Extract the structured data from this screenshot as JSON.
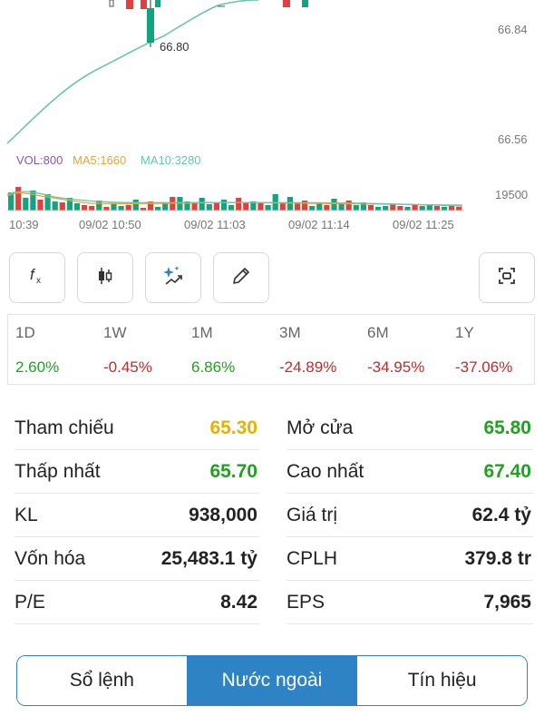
{
  "chart": {
    "price_labels": [
      "66.84",
      "66.56"
    ],
    "min_price_marker": "66.80",
    "volume_legend": {
      "vol": "VOL:800",
      "ma5": "MA5:1660",
      "ma10": "MA10:3280"
    },
    "volume_axis_label": "19500",
    "time_labels": [
      "10:39",
      "09/02 10:50",
      "09/02 11:03",
      "09/02 11:14",
      "09/02 11:25"
    ],
    "colors": {
      "up": "#14a37f",
      "down": "#e0413c",
      "ma_line": "#67c5b0",
      "ma5_line": "#e9a23b",
      "vol_label": "#7e57c2"
    }
  },
  "toolbar": {
    "buttons": [
      {
        "name": "indicator-icon",
        "glyph": "fx"
      },
      {
        "name": "candlestick-icon",
        "glyph": "candle"
      },
      {
        "name": "ai-sparkle-icon",
        "glyph": "sparkle"
      },
      {
        "name": "pencil-icon",
        "glyph": "pencil"
      },
      {
        "name": "fullscreen-icon",
        "glyph": "frame"
      }
    ]
  },
  "performance": [
    {
      "label": "1D",
      "value": "2.60%",
      "trend": "up"
    },
    {
      "label": "1W",
      "value": "-0.45%",
      "trend": "down"
    },
    {
      "label": "1M",
      "value": "6.86%",
      "trend": "up"
    },
    {
      "label": "3M",
      "value": "-24.89%",
      "trend": "down"
    },
    {
      "label": "6M",
      "value": "-34.95%",
      "trend": "down"
    },
    {
      "label": "1Y",
      "value": "-37.06%",
      "trend": "down"
    }
  ],
  "stats": [
    {
      "left_label": "Tham chiếu",
      "left_value": "65.30",
      "left_color": "#e8b100",
      "right_label": "Mở cửa",
      "right_value": "65.80",
      "right_color": "#1ea31e"
    },
    {
      "left_label": "Thấp nhất",
      "left_value": "65.70",
      "left_color": "#1ea31e",
      "right_label": "Cao nhất",
      "right_value": "67.40",
      "right_color": "#1ea31e"
    },
    {
      "left_label": "KL",
      "left_value": "938,000",
      "left_color": "#222222",
      "right_label": "Giá trị",
      "right_value": "62.4 tỷ",
      "right_color": "#222222"
    },
    {
      "left_label": "Vốn hóa",
      "left_value": "25,483.1 tỷ",
      "left_color": "#222222",
      "right_label": "CPLH",
      "right_value": "379.8 tr",
      "right_color": "#222222"
    },
    {
      "left_label": "P/E",
      "left_value": "8.42",
      "left_color": "#222222",
      "right_label": "EPS",
      "right_value": "7,965",
      "right_color": "#222222"
    }
  ],
  "tabs": [
    {
      "label": "Sổ lệnh",
      "active": false
    },
    {
      "label": "Nước ngoài",
      "active": true
    },
    {
      "label": "Tín hiệu",
      "active": false
    }
  ],
  "colors": {
    "up": "#1ea31e",
    "down": "#c62828",
    "accent": "#2d83c3"
  }
}
